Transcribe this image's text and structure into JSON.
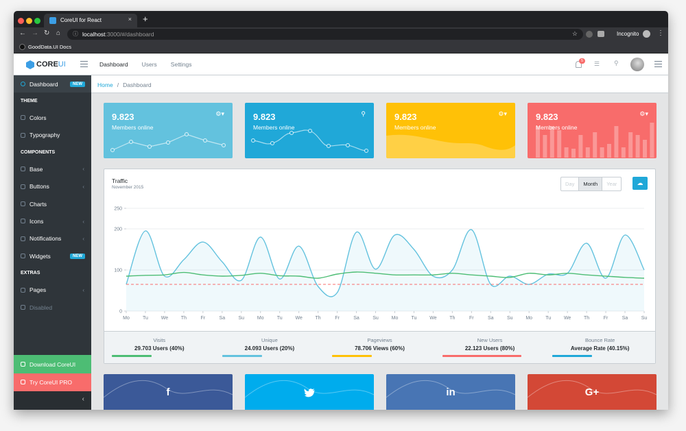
{
  "browser": {
    "tab_title": "CoreUI for React",
    "url_host": "localhost",
    "url_path": ":3000/#/dashboard",
    "profile": "Incognito",
    "bookmark": "GoodData.UI Docs"
  },
  "header": {
    "logo_core": "CORE",
    "logo_ui": "UI",
    "nav": [
      "Dashboard",
      "Users",
      "Settings"
    ],
    "notifications": "5"
  },
  "sidebar": {
    "items": [
      {
        "label": "Dashboard",
        "badge": "NEW",
        "active": true
      },
      {
        "section": "THEME"
      },
      {
        "label": "Colors"
      },
      {
        "label": "Typography"
      },
      {
        "section": "COMPONENTS"
      },
      {
        "label": "Base",
        "arrow": true
      },
      {
        "label": "Buttons",
        "arrow": true
      },
      {
        "label": "Charts"
      },
      {
        "label": "Icons",
        "arrow": true
      },
      {
        "label": "Notifications",
        "arrow": true
      },
      {
        "label": "Widgets",
        "badge": "NEW"
      },
      {
        "section": "EXTRAS"
      },
      {
        "label": "Pages",
        "arrow": true
      },
      {
        "label": "Disabled",
        "disabled": true
      }
    ],
    "download": "Download CoreUI",
    "pro": "Try CoreUI PRO"
  },
  "breadcrumb": [
    "Home",
    "Dashboard"
  ],
  "cards": [
    {
      "value": "9.823",
      "label": "Members online",
      "color": "#63c2de"
    },
    {
      "value": "9.823",
      "label": "Members online",
      "color": "#20a8d8"
    },
    {
      "value": "9.823",
      "label": "Members online",
      "color": "#ffc107"
    },
    {
      "value": "9.823",
      "label": "Members online",
      "color": "#f86c6b"
    }
  ],
  "periods": [
    "Day",
    "Month",
    "Year"
  ],
  "active_period": 1,
  "chart_data": {
    "type": "line",
    "title": "Traffic",
    "subtitle": "November 2015",
    "categories": [
      "Mo",
      "Tu",
      "We",
      "Th",
      "Fr",
      "Sa",
      "Su",
      "Mo",
      "Tu",
      "We",
      "Th",
      "Fr",
      "Sa",
      "Su",
      "Mo",
      "Tu",
      "We",
      "Th",
      "Fr",
      "Sa",
      "Su",
      "Mo",
      "Tu",
      "We",
      "Th",
      "Fr",
      "Sa",
      "Su"
    ],
    "series": [
      {
        "color": "#63c2de",
        "fill": "rgba(99,194,222,0.1)",
        "values": [
          65,
          195,
          85,
          125,
          168,
          120,
          75,
          180,
          78,
          158,
          60,
          45,
          192,
          102,
          185,
          150,
          85,
          100,
          198,
          65,
          85,
          65,
          90,
          92,
          165,
          80,
          185,
          100
        ]
      },
      {
        "color": "#4dbd74",
        "values": [
          85,
          87,
          88,
          94,
          88,
          85,
          87,
          92,
          86,
          85,
          80,
          90,
          95,
          92,
          88,
          88,
          88,
          92,
          88,
          85,
          82,
          92,
          88,
          92,
          88,
          85,
          82,
          80
        ]
      }
    ],
    "threshold": 65,
    "threshold_color": "#f86c6b",
    "ylim": [
      0,
      250
    ],
    "yticks": [
      0,
      100,
      200,
      250
    ],
    "grid": true
  },
  "stats": [
    {
      "label": "Visits",
      "value": "29.703 Users (40%)",
      "color": "#4dbd74"
    },
    {
      "label": "Unique",
      "value": "24.093 Users (20%)",
      "color": "#63c2de"
    },
    {
      "label": "Pageviews",
      "value": "78.706 Views (60%)",
      "color": "#ffc107"
    },
    {
      "label": "New Users",
      "value": "22.123 Users (80%)",
      "color": "#f86c6b"
    },
    {
      "label": "Bounce Rate",
      "value": "Average Rate (40.15%)",
      "color": "#20a8d8"
    }
  ],
  "social": [
    {
      "icon": "f",
      "color": "#3b5998"
    },
    {
      "icon": "",
      "color": "#00aced"
    },
    {
      "icon": "in",
      "color": "#4875b4"
    },
    {
      "icon": "G+",
      "color": "#d34836"
    }
  ]
}
